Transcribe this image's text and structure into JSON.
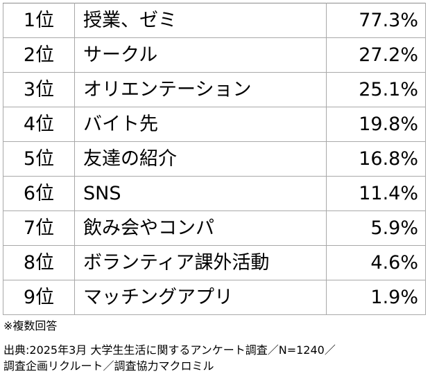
{
  "rows": [
    {
      "rank": "1位",
      "item": "授業、ゼミ",
      "percent": "77.3%"
    },
    {
      "rank": "2位",
      "item": "サークル",
      "percent": "27.2%"
    },
    {
      "rank": "3位",
      "item": "オリエンテーション",
      "percent": "25.1%"
    },
    {
      "rank": "4位",
      "item": "バイト先",
      "percent": "19.8%"
    },
    {
      "rank": "5位",
      "item": "友達の紹介",
      "percent": "16.8%"
    },
    {
      "rank": "6位",
      "item": "SNS",
      "percent": "11.4%"
    },
    {
      "rank": "7位",
      "item": "飲み会やコンパ",
      "percent": "5.9%"
    },
    {
      "rank": "8位",
      "item": "ボランティア課外活動",
      "percent": "4.6%"
    },
    {
      "rank": "9位",
      "item": "マッチングアプリ",
      "percent": "1.9%"
    }
  ],
  "note": "※複数回答",
  "source": {
    "line1": "出典:2025年3月 大学生生活に関するアンケート調査／N=1240／",
    "line2": "調査企画リクルート／調査協力マクロミル"
  },
  "colors": {
    "border": "#a8a8a8",
    "text": "#000000",
    "background": "#ffffff"
  }
}
